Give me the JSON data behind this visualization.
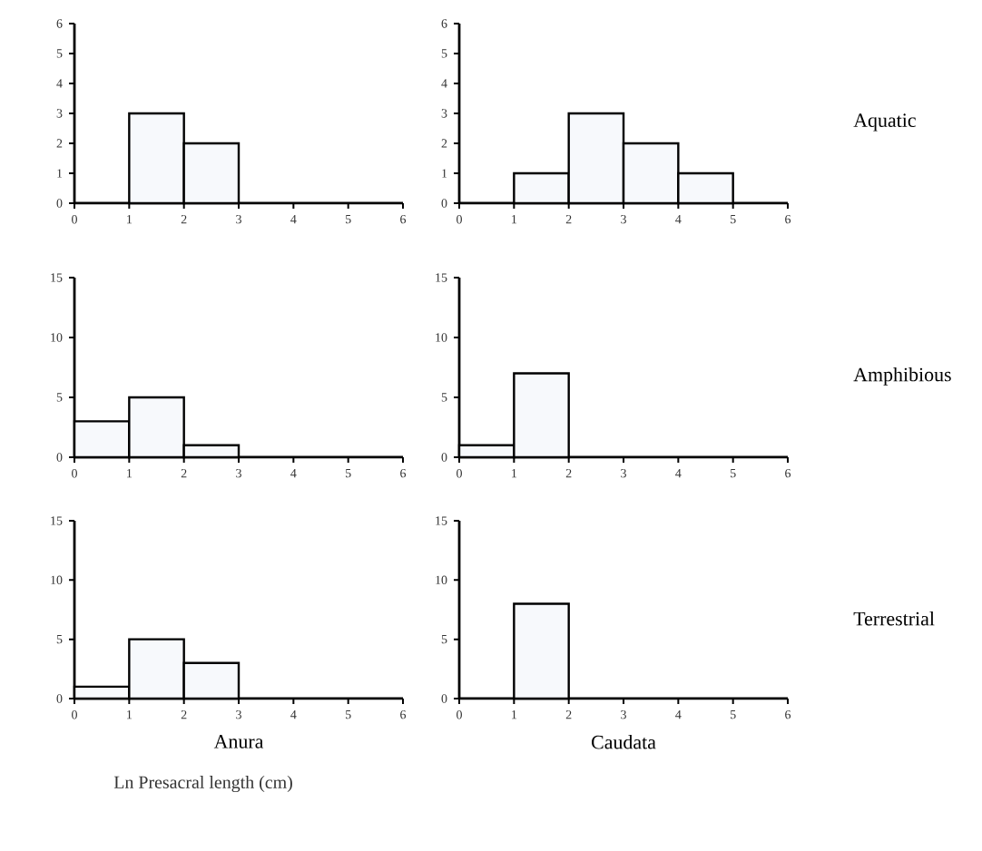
{
  "chart_data": [
    {
      "type": "histogram",
      "bins": [
        0,
        1,
        2,
        3,
        4,
        5,
        6
      ],
      "values": [
        0,
        3,
        2,
        0,
        0,
        0
      ],
      "color": "#f7f9fc",
      "xlim": [
        0,
        6
      ],
      "ylim": [
        0,
        6
      ],
      "xticks": [
        0,
        1,
        2,
        3,
        4,
        5,
        6
      ],
      "yticks": [
        0,
        1,
        2,
        3,
        4,
        5,
        6
      ]
    },
    {
      "type": "histogram",
      "bins": [
        0,
        1,
        2,
        3,
        4,
        5,
        6
      ],
      "values": [
        0,
        1,
        3,
        2,
        1,
        0
      ],
      "color": "#f7f9fc",
      "xlim": [
        0,
        6
      ],
      "ylim": [
        0,
        6
      ],
      "xticks": [
        0,
        1,
        2,
        3,
        4,
        5,
        6
      ],
      "yticks": [
        0,
        1,
        2,
        3,
        4,
        5,
        6
      ],
      "annotations": [
        "Aquatic"
      ]
    },
    {
      "type": "histogram",
      "bins": [
        0,
        1,
        2,
        3,
        4,
        5,
        6
      ],
      "values": [
        3,
        5,
        1,
        0,
        0,
        0
      ],
      "color": "#f7f9fc",
      "xlim": [
        0,
        6
      ],
      "ylim": [
        0,
        15
      ],
      "xticks": [
        0,
        1,
        2,
        3,
        4,
        5,
        6
      ],
      "yticks": [
        0,
        5,
        10,
        15
      ]
    },
    {
      "type": "histogram",
      "bins": [
        0,
        1,
        2,
        3,
        4,
        5,
        6
      ],
      "values": [
        1,
        7,
        0,
        0,
        0,
        0
      ],
      "color": "#f7f9fc",
      "xlim": [
        0,
        6
      ],
      "ylim": [
        0,
        15
      ],
      "xticks": [
        0,
        1,
        2,
        3,
        4,
        5,
        6
      ],
      "yticks": [
        0,
        5,
        10,
        15
      ],
      "annotations": [
        "Amphibious"
      ]
    },
    {
      "type": "histogram",
      "bins": [
        0,
        1,
        2,
        3,
        4,
        5,
        6
      ],
      "values": [
        1,
        5,
        3,
        0,
        0,
        0
      ],
      "color": "#f7f9fc",
      "xlim": [
        0,
        6
      ],
      "ylim": [
        0,
        15
      ],
      "xticks": [
        0,
        1,
        2,
        3,
        4,
        5,
        6
      ],
      "yticks": [
        0,
        5,
        10,
        15
      ],
      "xlabel": "Anura",
      "annotations": [
        "Ln Presacral length (cm)"
      ]
    },
    {
      "type": "histogram",
      "bins": [
        0,
        1,
        2,
        3,
        4,
        5,
        6
      ],
      "values": [
        0,
        8,
        0,
        0,
        0,
        0
      ],
      "color": "#f7f9fc",
      "xlim": [
        0,
        6
      ],
      "ylim": [
        0,
        15
      ],
      "xticks": [
        0,
        1,
        2,
        3,
        4,
        5,
        6
      ],
      "yticks": [
        0,
        5,
        10,
        15
      ],
      "xlabel": "Caudata",
      "annotations": [
        "Terrestrial"
      ]
    }
  ]
}
